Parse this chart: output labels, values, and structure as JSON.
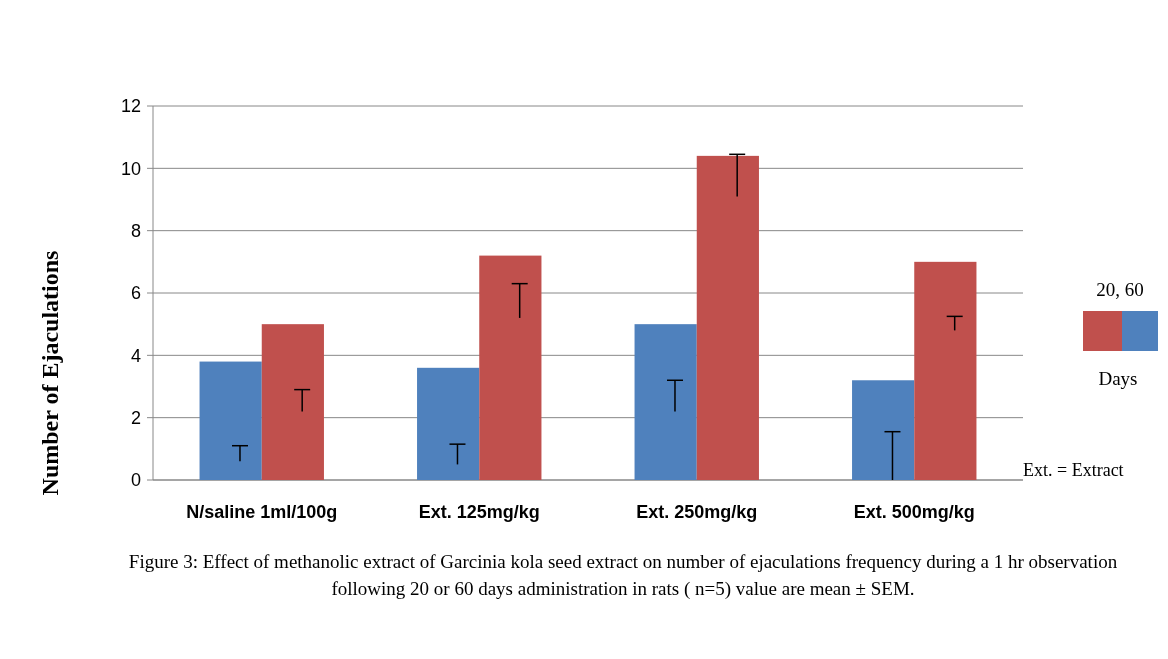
{
  "chart_data": {
    "type": "bar",
    "ylabel": "Number  of Ejaculations",
    "legend_title": "20, 60",
    "categories": [
      "N/saline 1ml/100g",
      "Ext. 125mg/kg",
      "Ext. 250mg/kg",
      "Ext. 500mg/kg"
    ],
    "series": [
      {
        "color": "#4f81bd",
        "values": [
          3.8,
          3.6,
          5.0,
          3.2
        ],
        "errors": [
          [
            0.6,
            1.1
          ],
          [
            0.5,
            1.15
          ],
          [
            2.2,
            3.2
          ],
          [
            0,
            1.55
          ]
        ]
      },
      {
        "color": "#c0504d",
        "values": [
          5.0,
          7.2,
          10.4,
          7.0
        ],
        "errors": [
          [
            2.2,
            2.9
          ],
          [
            5.2,
            6.3
          ],
          [
            9.1,
            10.45
          ],
          [
            4.8,
            5.25
          ]
        ]
      }
    ],
    "ylim": [
      0,
      12
    ],
    "yticks": [
      0,
      2,
      4,
      6,
      8,
      10,
      12
    ],
    "grid": "y",
    "annotations": [
      "Days",
      "Ext. = Extract",
      "Figure 3: Effect of methanolic extract of Garcinia kola seed  extract on   number  of  ejaculations frequency during a 1 hr observation  following 20 or 60 days administration in rats ( n=5) value are mean ± SEM."
    ]
  }
}
